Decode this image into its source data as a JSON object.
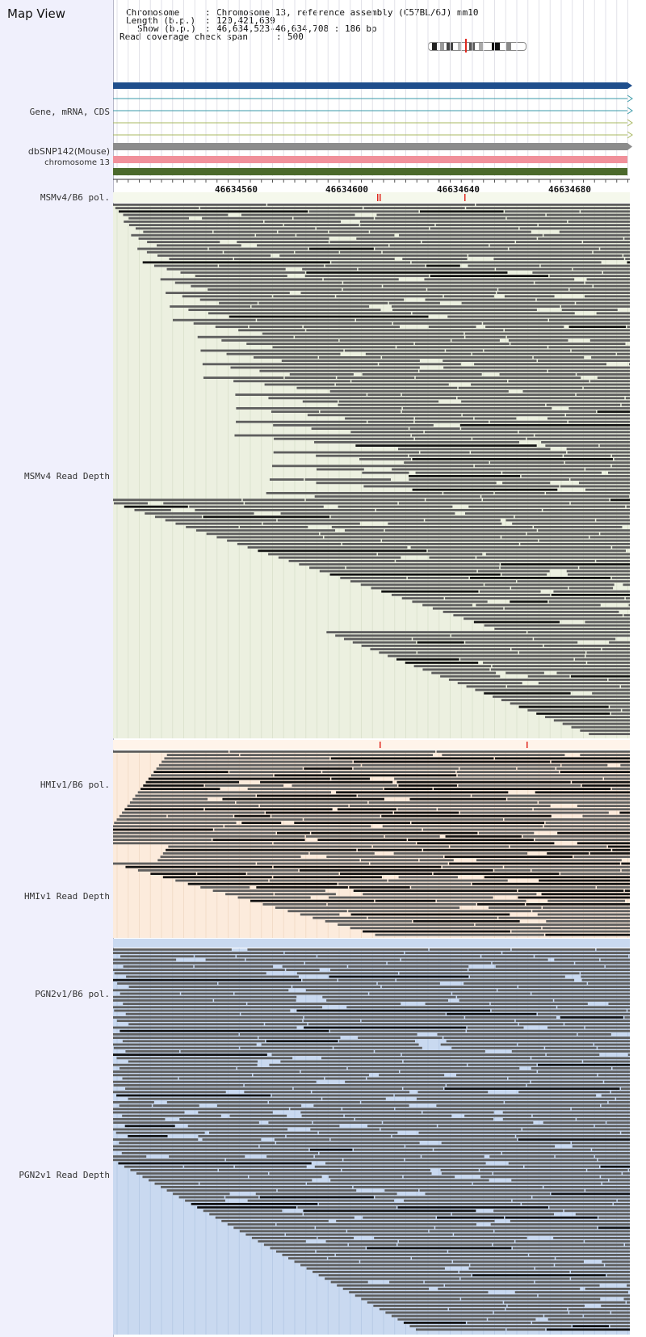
{
  "app": {
    "title": "Map View"
  },
  "header_info": {
    "chromosome_label": "Chromosome",
    "chromosome_value": "Chromosome 13, reference assembly (C57BL/6J) mm10",
    "length_label": "Length (b.p.)",
    "length_value": "120,421,639",
    "show_label": "Show (b.p.)",
    "show_value": "46,634,523-46,634,708 : 186 bp",
    "coverage_label": "Read coverage check span",
    "coverage_value": "500"
  },
  "tracks": {
    "gene": "Gene, mRNA, CDS",
    "dbsnp": "dbSNP142(Mouse)",
    "chromosome": "chromosome 13",
    "msm_pol": "MSMv4/B6 pol.",
    "msm_depth": "MSMv4 Read Depth",
    "hmi_pol": "HMIv1/B6 pol.",
    "hmi_depth": "HMIv1 Read Depth",
    "pgn_pol": "PGN2v1/B6 pol.",
    "pgn_depth": "PGN2v1 Read Depth"
  },
  "ruler": {
    "ticks": [
      "46634560",
      "46634600",
      "46634640",
      "46634680"
    ]
  },
  "colors": {
    "label_bg": "#f0f0fc",
    "gene_blue": "#1f4e8c",
    "transcript_teal": "#3a9aa8",
    "transcript_olive": "#a8b860",
    "pseudo_gray": "#8c8c8c",
    "dbsnp_pink": "#f0909a",
    "chrom_green": "#4c6a2c",
    "msm_bg": "#ecf0e0",
    "hmi_bg": "#fcebdc",
    "pgn_bg": "#c9d9f0",
    "read_gray": "#5e5e5e",
    "read_dark": "#141414",
    "snp_red": "#e0281e"
  },
  "icons": [
    "gene-arrow-icon",
    "chromosome-ideogram-icon"
  ]
}
